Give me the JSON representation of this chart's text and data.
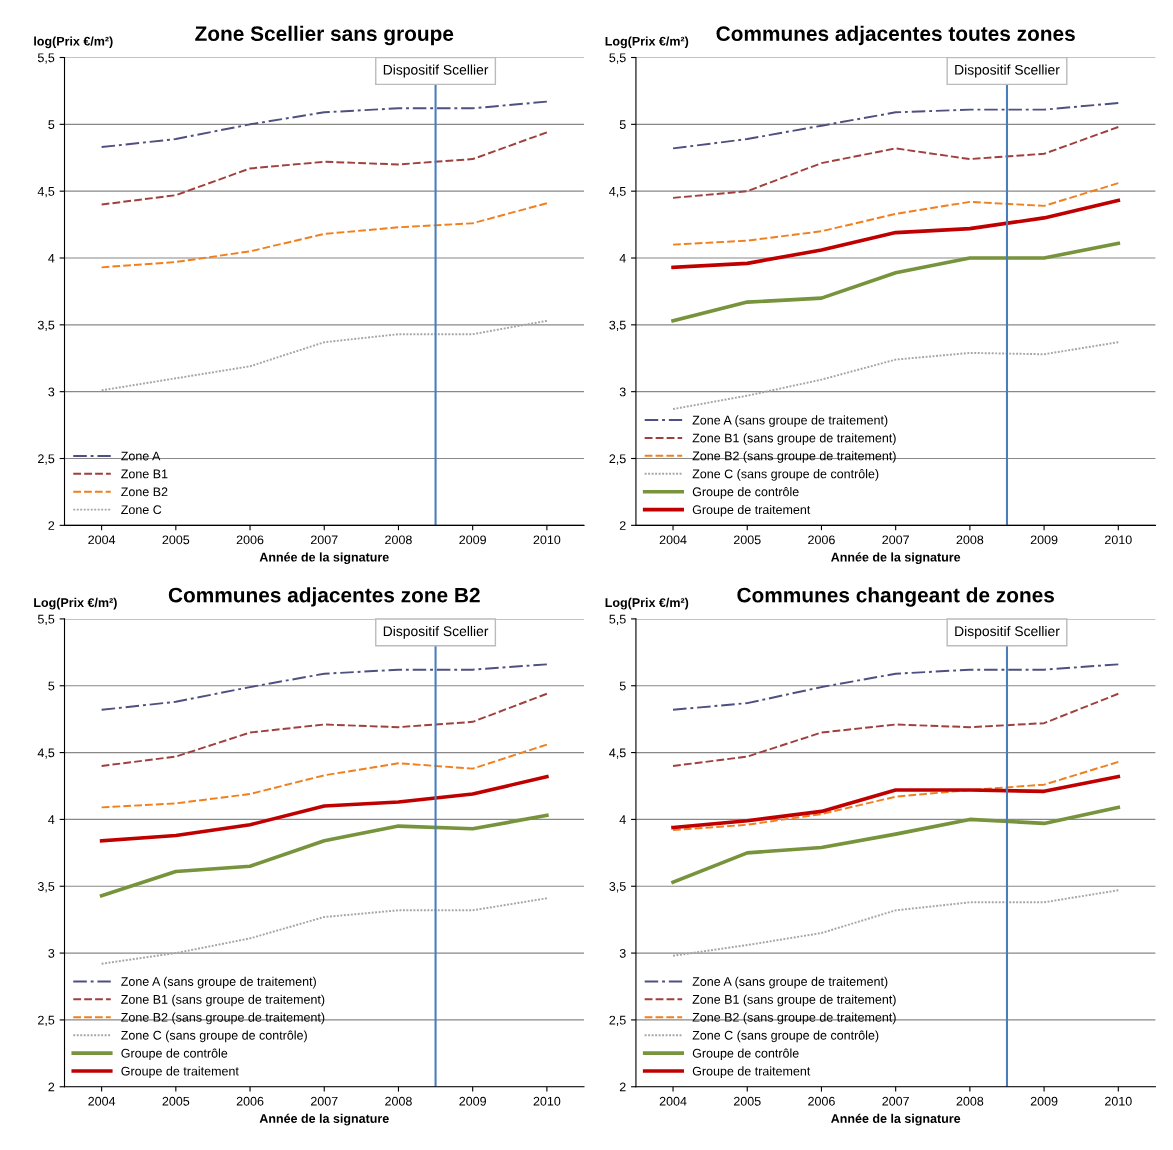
{
  "chart_data": [
    {
      "type": "line",
      "title": "Zone Scellier sans groupe",
      "ylabel": "log(Prix €/m²)",
      "xlabel": "Année de la signature",
      "x": [
        2004,
        2005,
        2006,
        2007,
        2008,
        2009,
        2010
      ],
      "xlim": [
        2003.5,
        2010.5
      ],
      "xticks": [
        2004,
        2005,
        2006,
        2007,
        2008,
        2009,
        2010
      ],
      "ylim": [
        2,
        5.5
      ],
      "yticks": [
        {
          "value": 2,
          "label": "2"
        },
        {
          "value": 2.5,
          "label": "2,5"
        },
        {
          "value": 3,
          "label": "3"
        },
        {
          "value": 3.5,
          "label": "3,5"
        },
        {
          "value": 4,
          "label": "4"
        },
        {
          "value": 4.5,
          "label": "4,5"
        },
        {
          "value": 5,
          "label": "5"
        },
        {
          "value": 5.5,
          "label": "5,5"
        }
      ],
      "grid": "y",
      "legend": "bottom left",
      "ref_lines": [
        {
          "axis": "x",
          "value": 2008.5,
          "label": "Dispositif Scellier",
          "color": "#4a7ebb"
        }
      ],
      "series": [
        {
          "name": "Zone A",
          "color": "#4f4f80",
          "line_style": "dashdot",
          "values": [
            4.83,
            4.89,
            5.0,
            5.09,
            5.12,
            5.12,
            5.17
          ]
        },
        {
          "name": "Zone B1",
          "color": "#a0403e",
          "line_style": "dashed",
          "values": [
            4.4,
            4.47,
            4.67,
            4.72,
            4.7,
            4.74,
            4.94
          ]
        },
        {
          "name": "Zone B2",
          "color": "#f07f1e",
          "line_style": "dashed",
          "values": [
            3.93,
            3.97,
            4.05,
            4.18,
            4.23,
            4.26,
            4.41
          ]
        },
        {
          "name": "Zone C",
          "color": "#a6a6a6",
          "line_style": "dotted",
          "values": [
            3.01,
            3.1,
            3.19,
            3.37,
            3.43,
            3.43,
            3.53
          ]
        }
      ]
    },
    {
      "type": "line",
      "title": "Communes adjacentes toutes zones",
      "ylabel": "Log(Prix €/m²)",
      "xlabel": "Année de la signature",
      "x": [
        2004,
        2005,
        2006,
        2007,
        2008,
        2009,
        2010
      ],
      "xlim": [
        2003.5,
        2010.5
      ],
      "xticks": [
        2004,
        2005,
        2006,
        2007,
        2008,
        2009,
        2010
      ],
      "ylim": [
        2,
        5.5
      ],
      "yticks": [
        {
          "value": 2,
          "label": "2"
        },
        {
          "value": 2.5,
          "label": "2,5"
        },
        {
          "value": 3,
          "label": "3"
        },
        {
          "value": 3.5,
          "label": "3,5"
        },
        {
          "value": 4,
          "label": "4"
        },
        {
          "value": 4.5,
          "label": "4,5"
        },
        {
          "value": 5,
          "label": "5"
        },
        {
          "value": 5.5,
          "label": "5,5"
        }
      ],
      "grid": "y",
      "legend": "bottom left",
      "ref_lines": [
        {
          "axis": "x",
          "value": 2008.5,
          "label": "Dispositif Scellier",
          "color": "#4a7ebb"
        }
      ],
      "series": [
        {
          "name": "Zone A (sans groupe de traitement)",
          "color": "#4f4f80",
          "line_style": "dashdot",
          "values": [
            4.82,
            4.89,
            4.99,
            5.09,
            5.11,
            5.11,
            5.16
          ]
        },
        {
          "name": "Zone B1 (sans groupe de traitement)",
          "color": "#a0403e",
          "line_style": "dashed",
          "values": [
            4.45,
            4.5,
            4.71,
            4.82,
            4.74,
            4.78,
            4.98
          ]
        },
        {
          "name": "Zone B2 (sans groupe de traitement)",
          "color": "#f07f1e",
          "line_style": "dashed",
          "values": [
            4.1,
            4.13,
            4.2,
            4.33,
            4.42,
            4.39,
            4.56
          ]
        },
        {
          "name": "Zone C (sans groupe de contrôle)",
          "color": "#a6a6a6",
          "line_style": "dotted",
          "values": [
            2.87,
            2.97,
            3.09,
            3.24,
            3.29,
            3.28,
            3.37
          ]
        },
        {
          "name": "Groupe de contrôle",
          "color": "#77933c",
          "line_style": "solid",
          "values": [
            3.53,
            3.67,
            3.7,
            3.89,
            4.0,
            4.0,
            4.11
          ]
        },
        {
          "name": "Groupe de traitement",
          "color": "#c00000",
          "line_style": "solid",
          "values": [
            3.93,
            3.96,
            4.06,
            4.19,
            4.22,
            4.3,
            4.43
          ]
        }
      ]
    },
    {
      "type": "line",
      "title": "Communes adjacentes zone B2",
      "ylabel": "Log(Prix €/m²)",
      "xlabel": "Année de la signature",
      "x": [
        2004,
        2005,
        2006,
        2007,
        2008,
        2009,
        2010
      ],
      "xlim": [
        2003.5,
        2010.5
      ],
      "xticks": [
        2004,
        2005,
        2006,
        2007,
        2008,
        2009,
        2010
      ],
      "ylim": [
        2,
        5.5
      ],
      "yticks": [
        {
          "value": 2,
          "label": "2"
        },
        {
          "value": 2.5,
          "label": "2,5"
        },
        {
          "value": 3,
          "label": "3"
        },
        {
          "value": 3.5,
          "label": "3,5"
        },
        {
          "value": 4,
          "label": "4"
        },
        {
          "value": 4.5,
          "label": "4,5"
        },
        {
          "value": 5,
          "label": "5"
        },
        {
          "value": 5.5,
          "label": "5,5"
        }
      ],
      "grid": "y",
      "legend": "bottom left",
      "ref_lines": [
        {
          "axis": "x",
          "value": 2008.5,
          "label": "Dispositif Scellier",
          "color": "#4a7ebb"
        }
      ],
      "series": [
        {
          "name": "Zone A (sans groupe de traitement)",
          "color": "#4f4f80",
          "line_style": "dashdot",
          "values": [
            4.82,
            4.88,
            4.99,
            5.09,
            5.12,
            5.12,
            5.16
          ]
        },
        {
          "name": "Zone B1 (sans groupe de traitement)",
          "color": "#a0403e",
          "line_style": "dashed",
          "values": [
            4.4,
            4.47,
            4.65,
            4.71,
            4.69,
            4.73,
            4.94
          ]
        },
        {
          "name": "Zone B2 (sans groupe de traitement)",
          "color": "#f07f1e",
          "line_style": "dashed",
          "values": [
            4.09,
            4.12,
            4.19,
            4.33,
            4.42,
            4.38,
            4.56
          ]
        },
        {
          "name": "Zone C (sans groupe de contrôle)",
          "color": "#a6a6a6",
          "line_style": "dotted",
          "values": [
            2.92,
            3.0,
            3.11,
            3.27,
            3.32,
            3.32,
            3.41
          ]
        },
        {
          "name": "Groupe de contrôle",
          "color": "#77933c",
          "line_style": "solid",
          "values": [
            3.43,
            3.61,
            3.65,
            3.84,
            3.95,
            3.93,
            4.03
          ]
        },
        {
          "name": "Groupe de traitement",
          "color": "#c00000",
          "line_style": "solid",
          "values": [
            3.84,
            3.88,
            3.96,
            4.1,
            4.13,
            4.19,
            4.32
          ]
        }
      ]
    },
    {
      "type": "line",
      "title": "Communes changeant de zones",
      "ylabel": "Log(Prix €/m²)",
      "xlabel": "Année de la signature",
      "x": [
        2004,
        2005,
        2006,
        2007,
        2008,
        2009,
        2010
      ],
      "xlim": [
        2003.5,
        2010.5
      ],
      "xticks": [
        2004,
        2005,
        2006,
        2007,
        2008,
        2009,
        2010
      ],
      "ylim": [
        2,
        5.5
      ],
      "yticks": [
        {
          "value": 2,
          "label": "2"
        },
        {
          "value": 2.5,
          "label": "2,5"
        },
        {
          "value": 3,
          "label": "3"
        },
        {
          "value": 3.5,
          "label": "3,5"
        },
        {
          "value": 4,
          "label": "4"
        },
        {
          "value": 4.5,
          "label": "4,5"
        },
        {
          "value": 5,
          "label": "5"
        },
        {
          "value": 5.5,
          "label": "5,5"
        }
      ],
      "grid": "y",
      "legend": "bottom left",
      "ref_lines": [
        {
          "axis": "x",
          "value": 2008.5,
          "label": "Dispositif Scellier",
          "color": "#4a7ebb"
        }
      ],
      "series": [
        {
          "name": "Zone A (sans groupe de traitement)",
          "color": "#4f4f80",
          "line_style": "dashdot",
          "values": [
            4.82,
            4.87,
            4.99,
            5.09,
            5.12,
            5.12,
            5.16
          ]
        },
        {
          "name": "Zone B1 (sans groupe de traitement)",
          "color": "#a0403e",
          "line_style": "dashed",
          "values": [
            4.4,
            4.47,
            4.65,
            4.71,
            4.69,
            4.72,
            4.94
          ]
        },
        {
          "name": "Zone B2 (sans groupe de traitement)",
          "color": "#f07f1e",
          "line_style": "dashed",
          "values": [
            3.92,
            3.96,
            4.04,
            4.17,
            4.22,
            4.26,
            4.43
          ]
        },
        {
          "name": "Zone C (sans groupe de contrôle)",
          "color": "#a6a6a6",
          "line_style": "dotted",
          "values": [
            2.98,
            3.06,
            3.15,
            3.32,
            3.38,
            3.38,
            3.47
          ]
        },
        {
          "name": "Groupe de contrôle",
          "color": "#77933c",
          "line_style": "solid",
          "values": [
            3.53,
            3.75,
            3.79,
            3.89,
            4.0,
            3.97,
            4.09
          ]
        },
        {
          "name": "Groupe de traitement",
          "color": "#c00000",
          "line_style": "solid",
          "values": [
            3.94,
            3.99,
            4.06,
            4.22,
            4.22,
            4.21,
            4.32
          ]
        }
      ]
    }
  ]
}
